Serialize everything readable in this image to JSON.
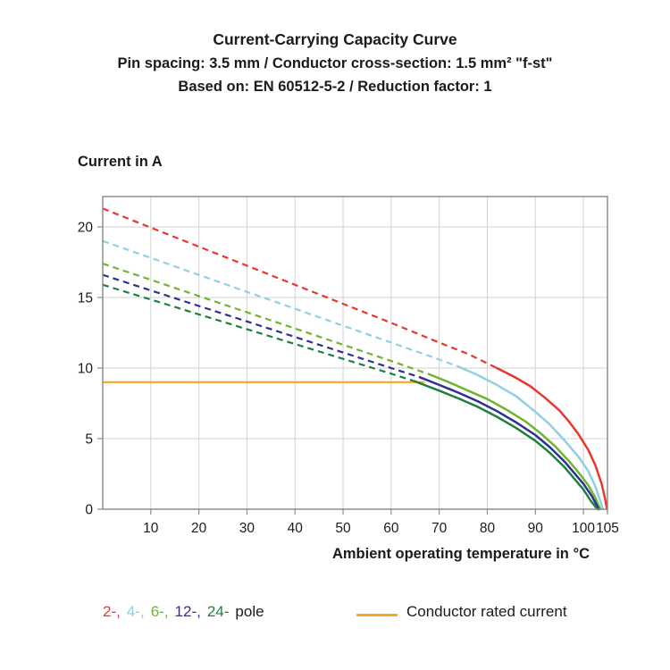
{
  "legend": {
    "poles": [
      {
        "text": "2-,",
        "color": "#E8372C"
      },
      {
        "text": "4-,",
        "color": "#8FD0E3"
      },
      {
        "text": "6-,",
        "color": "#70B52F"
      },
      {
        "text": "12-,",
        "color": "#2D3192"
      },
      {
        "text": "24-",
        "color": "#1E8040"
      }
    ],
    "pole_suffix": "pole",
    "rated_label": "Conductor rated current",
    "rated_color": "#F7A525"
  },
  "chart_data": {
    "type": "line",
    "title": "Current-Carrying Capacity Curve",
    "subtitle1": "Pin spacing: 3.5 mm / Conductor cross-section: 1.5 mm² \"f-st\"",
    "subtitle2": "Based on: EN 60512-5-2 / Reduction factor: 1",
    "xlabel": "Ambient operating temperature in °C",
    "ylabel": "Current in A",
    "xlim": [
      0,
      105
    ],
    "ylim": [
      0,
      22.15
    ],
    "xticks": [
      10,
      20,
      30,
      40,
      50,
      60,
      70,
      80,
      90,
      100,
      105
    ],
    "yticks": [
      0,
      5,
      10,
      15,
      20
    ],
    "grid": true,
    "grid_color": "#d2d2d2",
    "frame_color": "#8d8d8d",
    "rated_current": {
      "label": "Conductor rated current",
      "value": 9,
      "x_start": 0,
      "x_end": 67,
      "color": "#F7A525"
    },
    "series": [
      {
        "name": "2-pole",
        "color": "#E8372C",
        "dashed": [
          [
            0,
            21.3
          ],
          [
            10,
            19.95
          ],
          [
            20,
            18.6
          ],
          [
            30,
            17.25
          ],
          [
            40,
            15.9
          ],
          [
            50,
            14.55
          ],
          [
            60,
            13.2
          ],
          [
            70,
            11.8
          ],
          [
            76,
            11.0
          ],
          [
            82,
            10.0
          ]
        ],
        "solid": [
          [
            82,
            10.0
          ],
          [
            86,
            9.3
          ],
          [
            89,
            8.7
          ],
          [
            92,
            7.9
          ],
          [
            95,
            7.0
          ],
          [
            97,
            6.2
          ],
          [
            99,
            5.3
          ],
          [
            101,
            4.2
          ],
          [
            102.5,
            3.1
          ],
          [
            103.8,
            1.8
          ],
          [
            104.6,
            0.6
          ],
          [
            104.9,
            0
          ]
        ]
      },
      {
        "name": "4-pole",
        "color": "#8FD0E3",
        "dashed": [
          [
            0,
            19.0
          ],
          [
            10,
            17.8
          ],
          [
            20,
            16.6
          ],
          [
            30,
            15.4
          ],
          [
            40,
            14.2
          ],
          [
            50,
            13.0
          ],
          [
            60,
            11.8
          ],
          [
            68,
            10.85
          ],
          [
            74,
            10.1
          ]
        ],
        "solid": [
          [
            74,
            10.1
          ],
          [
            78,
            9.5
          ],
          [
            82,
            8.8
          ],
          [
            86,
            8.0
          ],
          [
            90,
            6.9
          ],
          [
            93,
            6.0
          ],
          [
            96,
            4.9
          ],
          [
            99,
            3.7
          ],
          [
            101,
            2.7
          ],
          [
            102.5,
            1.6
          ],
          [
            103.6,
            0.5
          ],
          [
            104,
            0
          ]
        ]
      },
      {
        "name": "6-pole",
        "color": "#70B52F",
        "dashed": [
          [
            0,
            17.4
          ],
          [
            10,
            16.25
          ],
          [
            20,
            15.1
          ],
          [
            30,
            13.95
          ],
          [
            40,
            12.8
          ],
          [
            50,
            11.65
          ],
          [
            60,
            10.5
          ],
          [
            68,
            9.55
          ]
        ],
        "solid": [
          [
            68,
            9.55
          ],
          [
            72,
            9.0
          ],
          [
            76,
            8.4
          ],
          [
            80,
            7.8
          ],
          [
            84,
            7.05
          ],
          [
            88,
            6.2
          ],
          [
            91,
            5.4
          ],
          [
            94,
            4.5
          ],
          [
            97,
            3.4
          ],
          [
            99,
            2.6
          ],
          [
            101,
            1.7
          ],
          [
            102.5,
            0.8
          ],
          [
            103.5,
            0
          ]
        ]
      },
      {
        "name": "12-pole",
        "color": "#2D3192",
        "dashed": [
          [
            0,
            16.6
          ],
          [
            10,
            15.5
          ],
          [
            20,
            14.4
          ],
          [
            30,
            13.3
          ],
          [
            40,
            12.2
          ],
          [
            50,
            11.1
          ],
          [
            60,
            10.0
          ],
          [
            66,
            9.35
          ]
        ],
        "solid": [
          [
            66,
            9.35
          ],
          [
            70,
            8.8
          ],
          [
            74,
            8.25
          ],
          [
            78,
            7.65
          ],
          [
            82,
            6.95
          ],
          [
            86,
            6.15
          ],
          [
            90,
            5.25
          ],
          [
            93,
            4.4
          ],
          [
            96,
            3.4
          ],
          [
            98,
            2.6
          ],
          [
            100,
            1.8
          ],
          [
            101.8,
            0.9
          ],
          [
            103.2,
            0
          ]
        ]
      },
      {
        "name": "24-pole",
        "color": "#1E8040",
        "dashed": [
          [
            0,
            15.9
          ],
          [
            10,
            14.85
          ],
          [
            20,
            13.8
          ],
          [
            30,
            12.75
          ],
          [
            40,
            11.7
          ],
          [
            50,
            10.65
          ],
          [
            60,
            9.6
          ],
          [
            65,
            9.05
          ]
        ],
        "solid": [
          [
            65,
            9.05
          ],
          [
            70,
            8.4
          ],
          [
            74,
            7.85
          ],
          [
            78,
            7.25
          ],
          [
            82,
            6.55
          ],
          [
            86,
            5.75
          ],
          [
            90,
            4.85
          ],
          [
            93,
            4.0
          ],
          [
            96,
            3.0
          ],
          [
            98,
            2.2
          ],
          [
            100,
            1.4
          ],
          [
            101.5,
            0.6
          ],
          [
            102.9,
            0
          ]
        ]
      }
    ]
  }
}
